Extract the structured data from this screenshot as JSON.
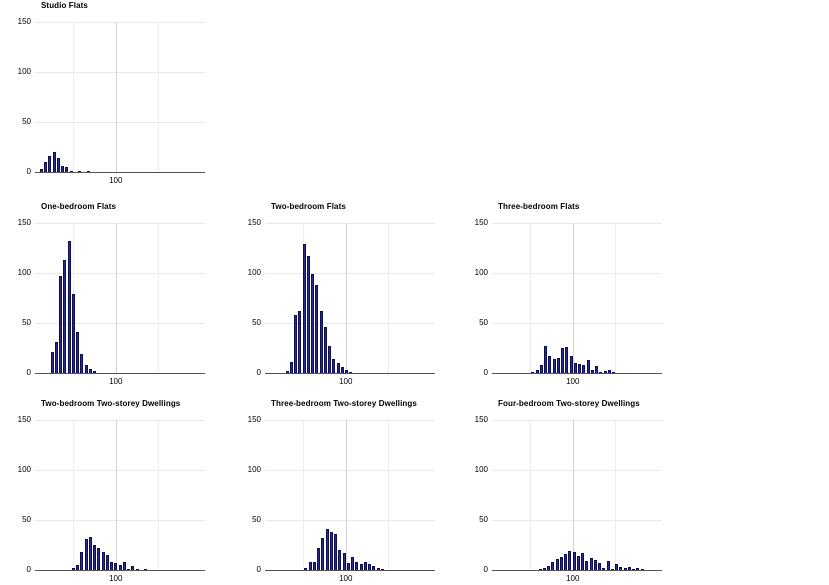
{
  "figure": {
    "background": "#ffffff",
    "description_title": "Small-multiple histograms of dwelling floor areas by dwelling type"
  },
  "style": {
    "bar_fill": "#2b2b8c",
    "bar_border": "#0e0e52",
    "gridline_color": "#e9e9e9",
    "minor_vgrid_color": "#ececec",
    "major_vgrid_color": "#d4d4d4",
    "axis_line_color": "#545454",
    "text_color": "#000000"
  },
  "axes": {
    "xlim": [
      5,
      205
    ],
    "ylim": [
      0,
      150
    ],
    "x_ticks": [
      {
        "value": 100,
        "label": "100"
      }
    ],
    "y_ticks": [
      {
        "value": 0,
        "label": "0"
      },
      {
        "value": 50,
        "label": "50"
      },
      {
        "value": 100,
        "label": "100"
      },
      {
        "value": 150,
        "label": "150"
      }
    ],
    "x_gridlines": [
      50,
      100,
      150
    ],
    "y_gridlines": [
      50,
      100,
      150
    ],
    "grid": "on",
    "legend": "none"
  },
  "chart_data": {
    "type": "bar",
    "subtype": "histogram small multiples",
    "layout_hint": "3x3 facet grid; row 1 contains only the first panel, rows 2-3 are full; shared axes 0-150 y, only x tick labeled is 100",
    "bin_width": 5,
    "panels": [
      {
        "id": "studio-flats",
        "title": "Studio Flats",
        "row": 0,
        "col": 0,
        "bin_start_center": 12.5,
        "values": [
          3,
          10,
          16,
          20,
          14,
          6,
          5,
          1,
          0,
          1,
          0,
          1
        ]
      },
      {
        "id": "one-bedroom-flats",
        "title": "One-bedroom Flats",
        "row": 1,
        "col": 0,
        "bin_start_center": 25,
        "values": [
          21,
          31,
          97,
          113,
          132,
          79,
          41,
          19,
          8,
          4,
          2
        ]
      },
      {
        "id": "two-bedroom-flats",
        "title": "Two-bedroom Flats",
        "row": 1,
        "col": 1,
        "bin_start_center": 31,
        "values": [
          2,
          11,
          58,
          62,
          129,
          117,
          99,
          88,
          62,
          46,
          27,
          14,
          10,
          6,
          3,
          1
        ]
      },
      {
        "id": "three-bedroom-flats",
        "title": "Three-bedroom Flats",
        "row": 1,
        "col": 2,
        "bin_start_center": 53,
        "values": [
          1,
          3,
          8,
          27,
          17,
          14,
          15,
          25,
          26,
          17,
          10,
          9,
          8,
          13,
          3,
          7,
          1,
          2,
          3,
          1
        ]
      },
      {
        "id": "two-bedroom-two-storey-dwellings",
        "title": "Two-bedroom Two-storey Dwellings",
        "row": 2,
        "col": 0,
        "bin_start_center": 50,
        "values": [
          2,
          5,
          18,
          31,
          33,
          25,
          22,
          18,
          15,
          8,
          7,
          5,
          8,
          1,
          4,
          1,
          0,
          1
        ]
      },
      {
        "id": "three-bedroom-two-storey-dwellings",
        "title": "Three-bedroom Two-storey Dwellings",
        "row": 2,
        "col": 1,
        "bin_start_center": 53,
        "values": [
          2,
          8,
          8,
          22,
          32,
          41,
          38,
          36,
          20,
          17,
          7,
          13,
          8,
          6,
          8,
          6,
          4,
          2,
          1
        ]
      },
      {
        "id": "four-bedroom-two-storey-dwellings",
        "title": "Four-bedroom Two-storey Dwellings",
        "row": 2,
        "col": 2,
        "bin_start_center": 61.5,
        "values": [
          1,
          2,
          4,
          8,
          11,
          13,
          16,
          19,
          18,
          14,
          17,
          9,
          12,
          10,
          7,
          2,
          9,
          1,
          6,
          3,
          2,
          3,
          1,
          2,
          1
        ]
      }
    ]
  }
}
